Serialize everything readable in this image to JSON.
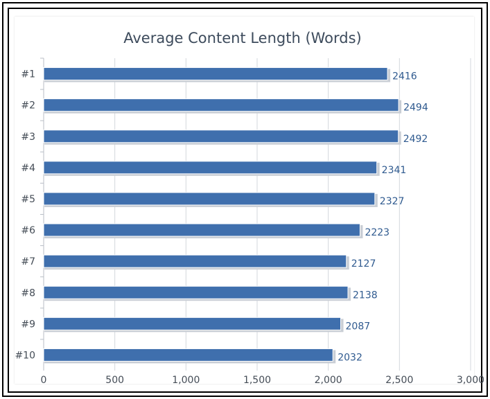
{
  "chart_data": {
    "type": "bar",
    "orientation": "horizontal",
    "title": "Average Content Length (Words)",
    "categories": [
      "#1",
      "#2",
      "#3",
      "#4",
      "#5",
      "#6",
      "#7",
      "#8",
      "#9",
      "#10"
    ],
    "values": [
      2416,
      2494,
      2492,
      2341,
      2327,
      2223,
      2127,
      2138,
      2087,
      2032
    ],
    "xlim": [
      0,
      3000
    ],
    "xticks": [
      0,
      500,
      1000,
      1500,
      2000,
      2500,
      3000
    ],
    "xtick_labels": [
      "0",
      "500",
      "1,000",
      "1,500",
      "2,000",
      "2,500",
      "3,000"
    ],
    "grid": "vertical",
    "bar_color": "#3f6fad",
    "label_color": "#2f5a8f"
  }
}
